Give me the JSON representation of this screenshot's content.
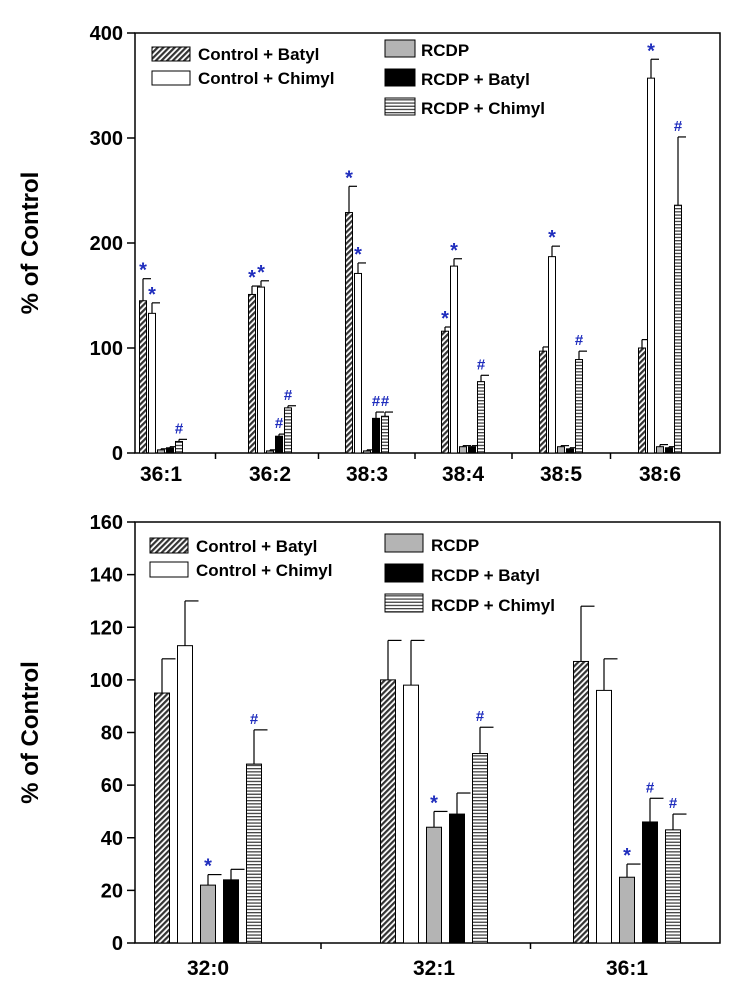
{
  "legend": [
    {
      "key": "control_batyl",
      "label": "Control + Batyl"
    },
    {
      "key": "control_chimyl",
      "label": "Control + Chimyl"
    },
    {
      "key": "rcdp",
      "label": "RCDP"
    },
    {
      "key": "rcdp_batyl",
      "label": "RCDP + Batyl"
    },
    {
      "key": "rcdp_chimyl",
      "label": "RCDP + Chimyl"
    }
  ],
  "chart_data": [
    {
      "type": "bar",
      "ylabel": "% of Control",
      "ylim": [
        0,
        400
      ],
      "yticks": [
        0,
        100,
        200,
        300,
        400
      ],
      "categories": [
        "36:1",
        "36:2",
        "38:3",
        "38:4",
        "38:5",
        "38:6"
      ],
      "legend_placement": "top",
      "series": [
        {
          "name": "Control + Batyl",
          "values": [
            145,
            151,
            229,
            116,
            97,
            100
          ],
          "errors": [
            21,
            8,
            25,
            4,
            4,
            8
          ],
          "markers": [
            "*",
            "*",
            "*",
            "*",
            "",
            ""
          ]
        },
        {
          "name": "Control + Chimyl",
          "values": [
            133,
            158,
            171,
            178,
            187,
            357
          ],
          "errors": [
            10,
            6,
            10,
            7,
            10,
            18
          ],
          "markers": [
            "*",
            "*",
            "*",
            "*",
            "*",
            "*"
          ]
        },
        {
          "name": "RCDP",
          "values": [
            3,
            2,
            2,
            6,
            6,
            6
          ],
          "errors": [
            1,
            1,
            1,
            1,
            1,
            2
          ],
          "markers": [
            "",
            "",
            "",
            "",
            "",
            ""
          ]
        },
        {
          "name": "RCDP + Batyl",
          "values": [
            5,
            16,
            33,
            6,
            4,
            5
          ],
          "errors": [
            1,
            2,
            6,
            1,
            1,
            1
          ],
          "markers": [
            "",
            "#",
            "#",
            "",
            "",
            ""
          ]
        },
        {
          "name": "RCDP + Chimyl",
          "values": [
            11,
            43,
            35,
            68,
            89,
            236
          ],
          "errors": [
            2,
            2,
            4,
            6,
            8,
            65
          ],
          "markers": [
            "#",
            "#",
            "#",
            "#",
            "#",
            "#"
          ]
        }
      ]
    },
    {
      "type": "bar",
      "ylabel": "% of Control",
      "ylim": [
        0,
        160
      ],
      "yticks": [
        0,
        20,
        40,
        60,
        80,
        100,
        120,
        140,
        160
      ],
      "categories": [
        "32:0",
        "32:1",
        "36:1"
      ],
      "legend_placement": "top",
      "series": [
        {
          "name": "Control + Batyl",
          "values": [
            95,
            100,
            107
          ],
          "errors": [
            13,
            15,
            21
          ],
          "markers": [
            "",
            "",
            ""
          ]
        },
        {
          "name": "Control + Chimyl",
          "values": [
            113,
            98,
            96
          ],
          "errors": [
            17,
            17,
            12
          ],
          "markers": [
            "",
            "",
            ""
          ]
        },
        {
          "name": "RCDP",
          "values": [
            22,
            44,
            25
          ],
          "errors": [
            4,
            6,
            5
          ],
          "markers": [
            "*",
            "*",
            "*"
          ]
        },
        {
          "name": "RCDP + Batyl",
          "values": [
            24,
            49,
            46
          ],
          "errors": [
            4,
            8,
            9
          ],
          "markers": [
            "",
            "",
            "#"
          ]
        },
        {
          "name": "RCDP + Chimyl",
          "values": [
            68,
            72,
            43
          ],
          "errors": [
            13,
            10,
            6
          ],
          "markers": [
            "#",
            "#",
            "#"
          ]
        }
      ]
    }
  ]
}
